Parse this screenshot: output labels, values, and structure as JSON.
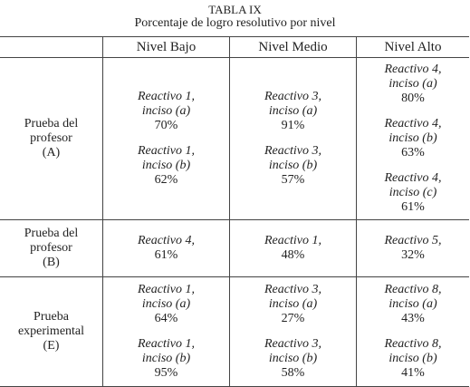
{
  "header": {
    "title": "TABLA IX",
    "subtitle": "Porcentaje de logro resolutivo por nivel"
  },
  "table": {
    "columns": [
      "Nivel Bajo",
      "Nivel Medio",
      "Nivel Alto"
    ],
    "rows": [
      {
        "label": [
          "Prueba del",
          "profesor",
          "(A)"
        ],
        "cells": [
          [
            {
              "item": "Reactivo 1,",
              "part": "inciso (a)",
              "percent": "70%"
            },
            {
              "item": "Reactivo 1,",
              "part": "inciso (b)",
              "percent": "62%"
            }
          ],
          [
            {
              "item": "Reactivo 3,",
              "part": "inciso (a)",
              "percent": "91%"
            },
            {
              "item": "Reactivo 3,",
              "part": "inciso (b)",
              "percent": "57%"
            }
          ],
          [
            {
              "item": "Reactivo 4,",
              "part": "inciso (a)",
              "percent": "80%"
            },
            {
              "item": "Reactivo 4,",
              "part": "inciso (b)",
              "percent": "63%"
            },
            {
              "item": "Reactivo 4,",
              "part": "inciso (c)",
              "percent": "61%"
            }
          ]
        ]
      },
      {
        "label": [
          "Prueba del",
          "profesor",
          "(B)"
        ],
        "cells": [
          [
            {
              "item": "Reactivo 4,",
              "percent": "61%"
            }
          ],
          [
            {
              "item": "Reactivo 1,",
              "percent": "48%"
            }
          ],
          [
            {
              "item": "Reactivo 5,",
              "percent": "32%"
            }
          ]
        ]
      },
      {
        "label": [
          "Prueba",
          "experimental",
          "(E)"
        ],
        "cells": [
          [
            {
              "item": "Reactivo 1,",
              "part": "inciso (a)",
              "percent": "64%"
            },
            {
              "item": "Reactivo 1,",
              "part": "inciso (b)",
              "percent": "95%"
            }
          ],
          [
            {
              "item": "Reactivo 3,",
              "part": "inciso (a)",
              "percent": "27%"
            },
            {
              "item": "Reactivo 3,",
              "part": "inciso (b)",
              "percent": "58%"
            }
          ],
          [
            {
              "item": "Reactivo 8,",
              "part": "inciso (a)",
              "percent": "43%"
            },
            {
              "item": "Reactivo 8,",
              "part": "inciso (b)",
              "percent": "41%"
            }
          ]
        ]
      }
    ]
  }
}
